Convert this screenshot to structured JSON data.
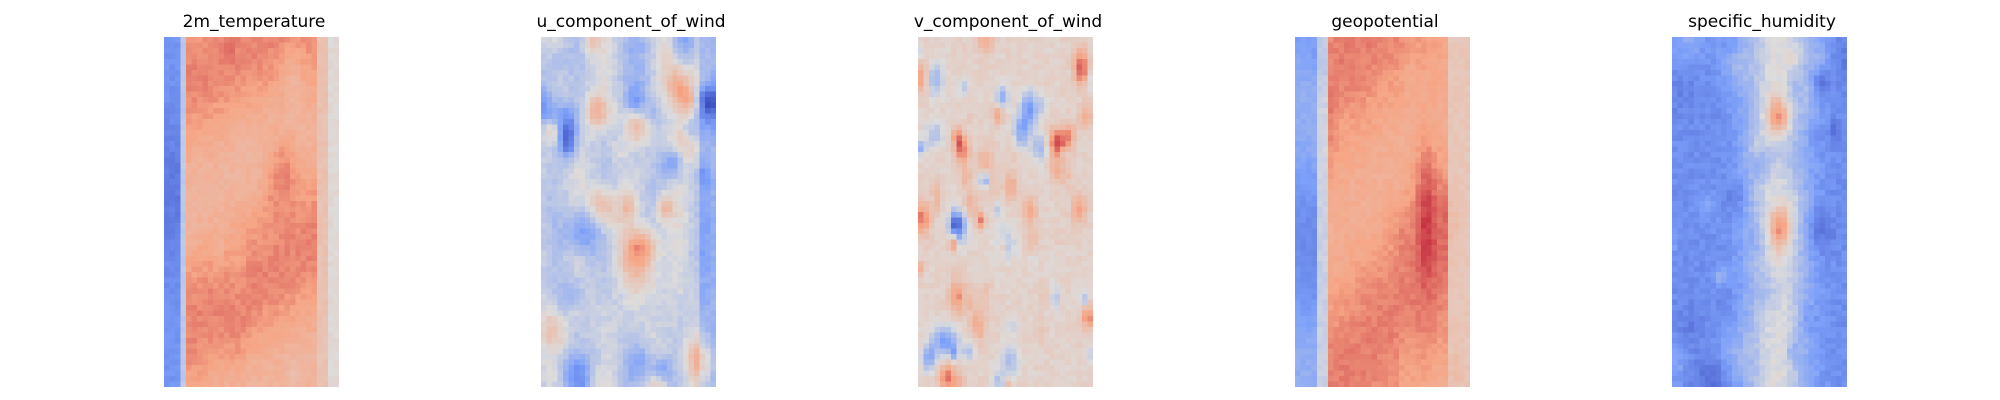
{
  "chart_data": [
    {
      "type": "heatmap",
      "title": "2m_temperature",
      "colormap": "coolwarm",
      "axes": "off",
      "grid": false,
      "pattern": "temperature"
    },
    {
      "type": "heatmap",
      "title": "u_component_of_wind",
      "colormap": "coolwarm",
      "axes": "off",
      "grid": false,
      "pattern": "u_wind"
    },
    {
      "type": "heatmap",
      "title": "v_component_of_wind",
      "colormap": "coolwarm",
      "axes": "off",
      "grid": false,
      "pattern": "v_wind"
    },
    {
      "type": "heatmap",
      "title": "geopotential",
      "colormap": "coolwarm",
      "axes": "off",
      "grid": false,
      "pattern": "geopotential"
    },
    {
      "type": "heatmap",
      "title": "specific_humidity",
      "colormap": "coolwarm",
      "axes": "off",
      "grid": false,
      "pattern": "humidity"
    }
  ]
}
